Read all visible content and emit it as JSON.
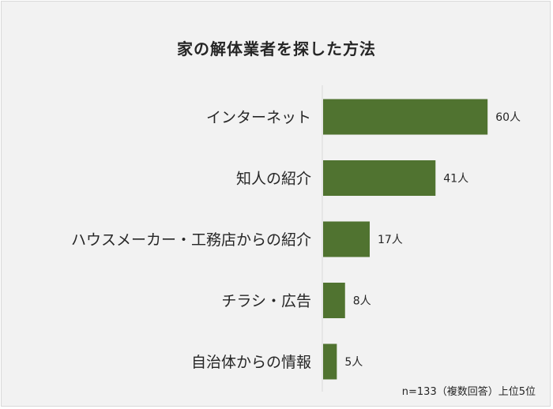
{
  "chart_data": {
    "type": "bar",
    "orientation": "horizontal",
    "title": "家の解体業者を探した方法",
    "categories": [
      "インターネット",
      "知人の紹介",
      "ハウスメーカー・工務店からの紹介",
      "チラシ・広告",
      "自治体からの情報"
    ],
    "values": [
      60,
      41,
      17,
      8,
      5
    ],
    "data_labels": [
      "60人",
      "41人",
      "17人",
      "8人",
      "5人"
    ],
    "unit": "人",
    "bar_color": "#507330",
    "grid": false,
    "legend": "none",
    "xlim": [
      0,
      80
    ]
  },
  "footnote": "n=133（複数回答）上位5位"
}
